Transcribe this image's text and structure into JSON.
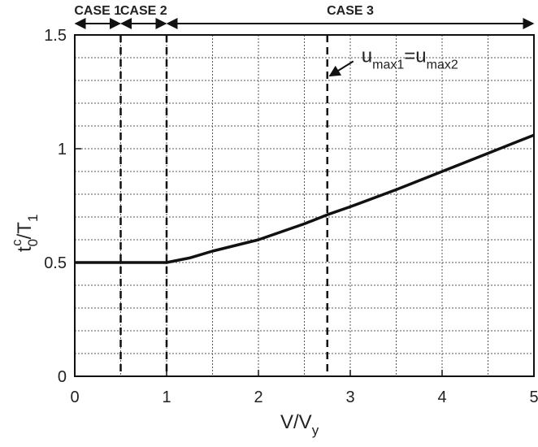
{
  "chart_data": {
    "type": "line",
    "x_label": {
      "main": "V/V",
      "sub": "y"
    },
    "y_label": {
      "base": "t",
      "sub": "0",
      "sup": "c",
      "mid": "/T",
      "sub2": "1"
    },
    "xlim": [
      0,
      5
    ],
    "ylim": [
      0,
      1.5
    ],
    "xticks": [
      0,
      1,
      2,
      3,
      4,
      5
    ],
    "yticks": [
      0,
      0.5,
      1,
      1.5
    ],
    "xgrid": [
      0.5,
      1,
      1.5,
      2,
      2.5,
      3,
      3.5,
      4,
      4.5
    ],
    "ygrid": [
      0.1,
      0.2,
      0.3,
      0.4,
      0.5,
      0.6,
      0.7,
      0.8,
      0.9,
      1,
      1.1,
      1.2,
      1.3,
      1.4
    ],
    "grid": true,
    "x": [
      0,
      0.5,
      1,
      1.25,
      1.5,
      2,
      2.5,
      2.75,
      3,
      3.5,
      4,
      4.5,
      5
    ],
    "series": [
      {
        "color": "#111111",
        "values": [
          0.5,
          0.5,
          0.5,
          0.52,
          0.55,
          0.6,
          0.67,
          0.71,
          0.745,
          0.82,
          0.9,
          0.98,
          1.06
        ]
      }
    ],
    "vlines": [
      0.5,
      1,
      2.75
    ],
    "cases": [
      {
        "label": "CASE 1",
        "from": 0,
        "to": 0.5
      },
      {
        "label": "CASE 2",
        "from": 0.5,
        "to": 1
      },
      {
        "label": "CASE 3",
        "from": 1,
        "to": 5
      }
    ],
    "annotation": {
      "parts": [
        "u",
        "max1",
        "=u",
        "max2"
      ],
      "x": 2.75,
      "y": 1.32
    }
  }
}
